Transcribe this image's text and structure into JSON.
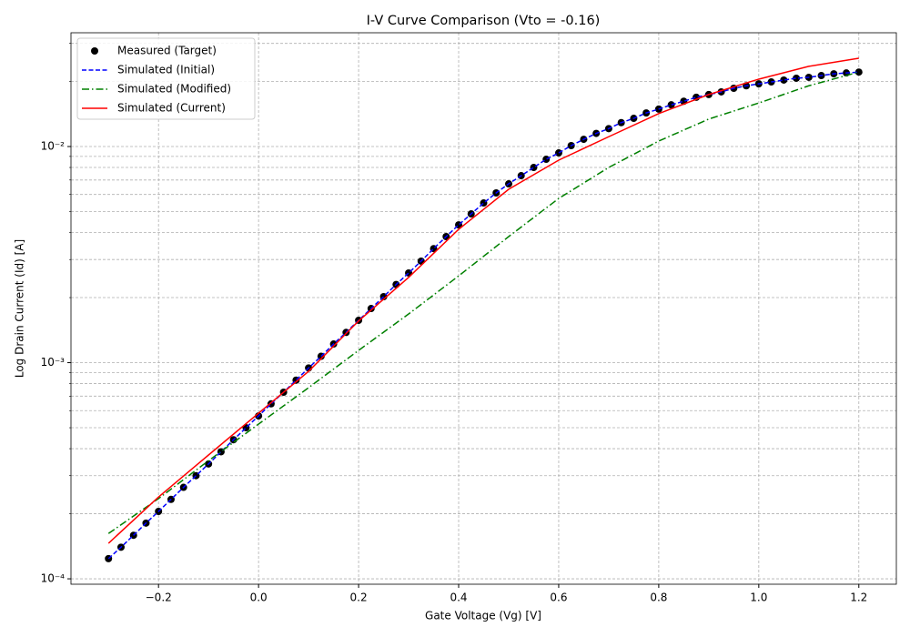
{
  "chart_data": {
    "type": "line",
    "title": "I-V Curve Comparison (Vto = -0.16)",
    "xlabel": "Gate Voltage (Vg) [V]",
    "ylabel": "Log Drain Current (Id) [A]",
    "yscale": "log",
    "grid": true,
    "legend": "upper left",
    "xlim": [
      -0.375,
      1.275
    ],
    "ylim": [
      9.44e-05,
      0.0336
    ],
    "xticks": [
      {
        "value": -0.2,
        "label": "−0.2"
      },
      {
        "value": 0,
        "label": "0.0"
      },
      0.2,
      0.4,
      0.6,
      0.8,
      {
        "value": 1,
        "label": "1.0"
      },
      1.2
    ],
    "yticks": [
      {
        "value": 0.0001,
        "label": "10⁻⁴"
      },
      {
        "value": 0.001,
        "label": "10⁻³"
      },
      {
        "value": 0.01,
        "label": "10⁻²"
      }
    ],
    "yminorticks": [
      0.0002,
      0.0003,
      0.0004,
      0.0005,
      0.0006,
      0.0007,
      0.0008,
      0.0009,
      0.002,
      0.003,
      0.004,
      0.005,
      0.006,
      0.007,
      0.008,
      0.009,
      0.02,
      0.03
    ],
    "series": [
      {
        "name": "Measured (Target)",
        "color": "#000000",
        "linestyle": "none",
        "marker": "o",
        "x": [
          -0.3,
          -0.275,
          -0.25,
          -0.225,
          -0.2,
          -0.175,
          -0.15,
          -0.125,
          -0.1,
          -0.075,
          -0.05,
          -0.025,
          0,
          0.025,
          0.05,
          0.075,
          0.1,
          0.125,
          0.15,
          0.175,
          0.2,
          0.225,
          0.25,
          0.275,
          0.3,
          0.325,
          0.35,
          0.375,
          0.4,
          0.425,
          0.45,
          0.475,
          0.5,
          0.525,
          0.55,
          0.575,
          0.6,
          0.625,
          0.65,
          0.675,
          0.7,
          0.725,
          0.75,
          0.775,
          0.8,
          0.825,
          0.85,
          0.875,
          0.9,
          0.925,
          0.95,
          0.975,
          1,
          1.025,
          1.05,
          1.075,
          1.1,
          1.125,
          1.15,
          1.175,
          1.2
        ],
        "values": [
          0.000124,
          0.00014,
          0.000159,
          0.000181,
          0.000205,
          0.000233,
          0.000265,
          0.0003,
          0.00034,
          0.000387,
          0.00044,
          0.0005,
          0.000567,
          0.000645,
          0.00073,
          0.00083,
          0.000945,
          0.00107,
          0.00122,
          0.00138,
          0.00157,
          0.00178,
          0.00202,
          0.0023,
          0.0026,
          0.00295,
          0.00337,
          0.00383,
          0.00434,
          0.00488,
          0.00548,
          0.0061,
          0.00672,
          0.00733,
          0.008,
          0.00873,
          0.00934,
          0.0101,
          0.0108,
          0.0115,
          0.0121,
          0.0129,
          0.0135,
          0.0143,
          0.0149,
          0.0156,
          0.0162,
          0.0169,
          0.0174,
          0.0179,
          0.0186,
          0.0191,
          0.0195,
          0.0199,
          0.0203,
          0.0207,
          0.0209,
          0.0213,
          0.0217,
          0.0219,
          0.0221
        ]
      },
      {
        "name": "Simulated (Initial)",
        "color": "#0000ff",
        "linestyle": "--",
        "x": [
          -0.3,
          -0.275,
          -0.25,
          -0.225,
          -0.2,
          -0.175,
          -0.15,
          -0.125,
          -0.1,
          -0.075,
          -0.05,
          -0.025,
          0,
          0.025,
          0.05,
          0.075,
          0.1,
          0.125,
          0.15,
          0.175,
          0.2,
          0.225,
          0.25,
          0.275,
          0.3,
          0.325,
          0.35,
          0.375,
          0.4,
          0.425,
          0.45,
          0.475,
          0.5,
          0.525,
          0.55,
          0.575,
          0.6,
          0.625,
          0.65,
          0.675,
          0.7,
          0.725,
          0.75,
          0.775,
          0.8,
          0.825,
          0.85,
          0.875,
          0.9,
          0.925,
          0.95,
          0.975,
          1,
          1.025,
          1.05,
          1.075,
          1.1,
          1.125,
          1.15,
          1.175,
          1.2
        ],
        "values": [
          0.000124,
          0.00014,
          0.000159,
          0.000181,
          0.000205,
          0.000233,
          0.000265,
          0.0003,
          0.00034,
          0.000387,
          0.00044,
          0.0005,
          0.000567,
          0.000645,
          0.00073,
          0.00083,
          0.000945,
          0.00107,
          0.00122,
          0.00138,
          0.00157,
          0.00178,
          0.00202,
          0.0023,
          0.0026,
          0.00295,
          0.00337,
          0.00383,
          0.00434,
          0.00488,
          0.00548,
          0.0061,
          0.00672,
          0.00733,
          0.008,
          0.00873,
          0.00934,
          0.0101,
          0.0108,
          0.0115,
          0.0121,
          0.0129,
          0.0135,
          0.0143,
          0.0149,
          0.0156,
          0.0162,
          0.0169,
          0.0174,
          0.0179,
          0.0186,
          0.0191,
          0.0195,
          0.0199,
          0.0203,
          0.0207,
          0.0209,
          0.0213,
          0.0217,
          0.0219,
          0.0221
        ]
      },
      {
        "name": "Simulated (Modified)",
        "color": "#008000",
        "linestyle": "-.",
        "x": [
          -0.3,
          -0.2,
          -0.1,
          0,
          0.1,
          0.2,
          0.3,
          0.4,
          0.5,
          0.6,
          0.7,
          0.8,
          0.9,
          1,
          1.1,
          1.2
        ],
        "values": [
          0.000162,
          0.000235,
          0.000352,
          0.00052,
          0.000766,
          0.00114,
          0.00168,
          0.00252,
          0.00383,
          0.00575,
          0.008,
          0.0106,
          0.0134,
          0.0159,
          0.0191,
          0.0221
        ]
      },
      {
        "name": "Simulated (Current)",
        "color": "#ff0000",
        "linestyle": "-",
        "x": [
          -0.3,
          -0.2,
          -0.1,
          0,
          0.1,
          0.2,
          0.3,
          0.4,
          0.5,
          0.6,
          0.7,
          0.8,
          0.9,
          1,
          1.1,
          1.2
        ],
        "values": [
          0.000146,
          0.000239,
          0.000374,
          0.000584,
          0.000912,
          0.00156,
          0.00248,
          0.00414,
          0.00634,
          0.00865,
          0.0111,
          0.0142,
          0.0174,
          0.0205,
          0.0235,
          0.0256
        ]
      }
    ]
  }
}
